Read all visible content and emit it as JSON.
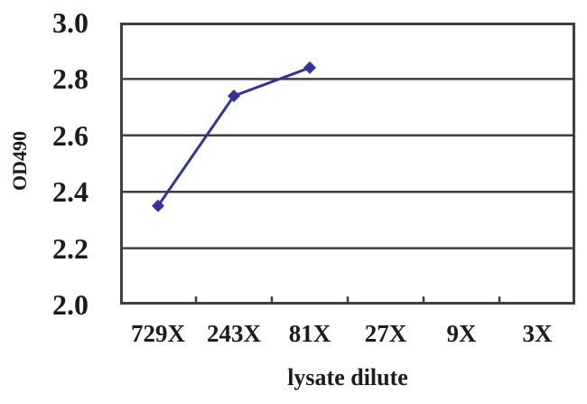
{
  "chart_data": {
    "type": "line",
    "title": "",
    "categories": [
      "729X",
      "243X",
      "81X",
      "27X",
      "9X",
      "3X"
    ],
    "series": [
      {
        "values": [
          2.35,
          2.74,
          2.84,
          null,
          null,
          null
        ]
      }
    ],
    "xlabel": "lysate dilute",
    "ylabel": "OD490",
    "ylim": [
      2.0,
      3.0
    ],
    "yticks": [
      "3.0",
      "2.8",
      "2.6",
      "2.4",
      "2.2",
      "2.0"
    ],
    "grid": true,
    "legend": false,
    "line_color": "#333399",
    "marker": "diamond",
    "axis_color": "#3f3f3f",
    "text_color": "#1c1c1c"
  }
}
